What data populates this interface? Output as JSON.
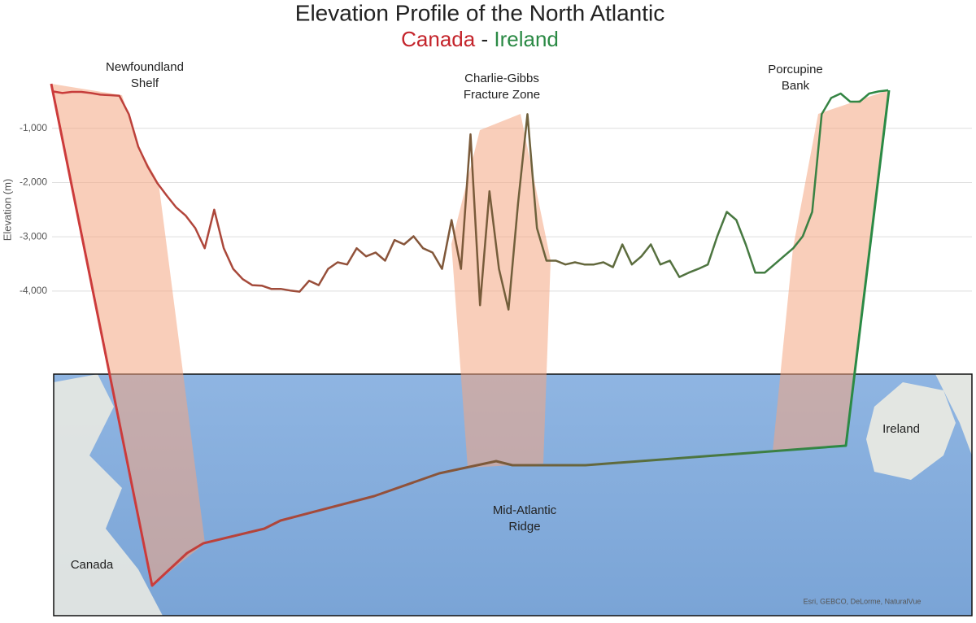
{
  "chart_data": {
    "type": "line",
    "title": "Elevation Profile of the North Atlantic",
    "subtitle": {
      "left": "Canada",
      "separator": "-",
      "right": "Ireland",
      "left_color": "#c4242b",
      "right_color": "#2b8a45",
      "separator_color": "#222222"
    },
    "ylabel": "Elevation (m)",
    "ylim": [
      -5500,
      0
    ],
    "yticks": [
      {
        "value": -1000,
        "label": "-1,000"
      },
      {
        "value": -2000,
        "label": "-2,000"
      },
      {
        "value": -3000,
        "label": "-3,000"
      },
      {
        "value": -4000,
        "label": "-4,000"
      }
    ],
    "grid": true,
    "series": [
      {
        "name": "Elevation",
        "colors": [
          "#cc3b3b",
          "#7a5a3a",
          "#2b8a45"
        ],
        "values": [
          -320,
          -350,
          -330,
          -330,
          -350,
          -380,
          -390,
          -400,
          -740,
          -1340,
          -1710,
          -2010,
          -2240,
          -2460,
          -2610,
          -2840,
          -3210,
          -2500,
          -3210,
          -3590,
          -3780,
          -3890,
          -3900,
          -3960,
          -3960,
          -3990,
          -4010,
          -3810,
          -3890,
          -3590,
          -3470,
          -3510,
          -3210,
          -3360,
          -3290,
          -3440,
          -3060,
          -3140,
          -2990,
          -3210,
          -3290,
          -3590,
          -2690,
          -3590,
          -1110,
          -4260,
          -2160,
          -3590,
          -4340,
          -2390,
          -740,
          -2840,
          -3440,
          -3440,
          -3510,
          -3470,
          -3510,
          -3510,
          -3470,
          -3560,
          -3140,
          -3510,
          -3360,
          -3140,
          -3510,
          -3440,
          -3740,
          -3660,
          -3590,
          -3510,
          -2990,
          -2540,
          -2690,
          -3140,
          -3660,
          -3660,
          -3510,
          -3360,
          -3210,
          -2990,
          -2540,
          -740,
          -440,
          -360,
          -510,
          -510,
          -360,
          -320,
          -300
        ]
      }
    ],
    "annotations": [
      {
        "text": [
          "Newfoundland",
          "Shelf"
        ]
      },
      {
        "text": [
          "Charlie-Gibbs",
          "Fracture Zone"
        ]
      },
      {
        "text": [
          "Porcupine",
          "Bank"
        ]
      }
    ],
    "map_labels": [
      {
        "text": [
          "Canada"
        ]
      },
      {
        "text": [
          "Ireland"
        ]
      },
      {
        "text": [
          "Mid-Atlantic",
          "Ridge"
        ]
      }
    ],
    "credit": "Esri, GEBCO, DeLorme, NaturalVue"
  }
}
